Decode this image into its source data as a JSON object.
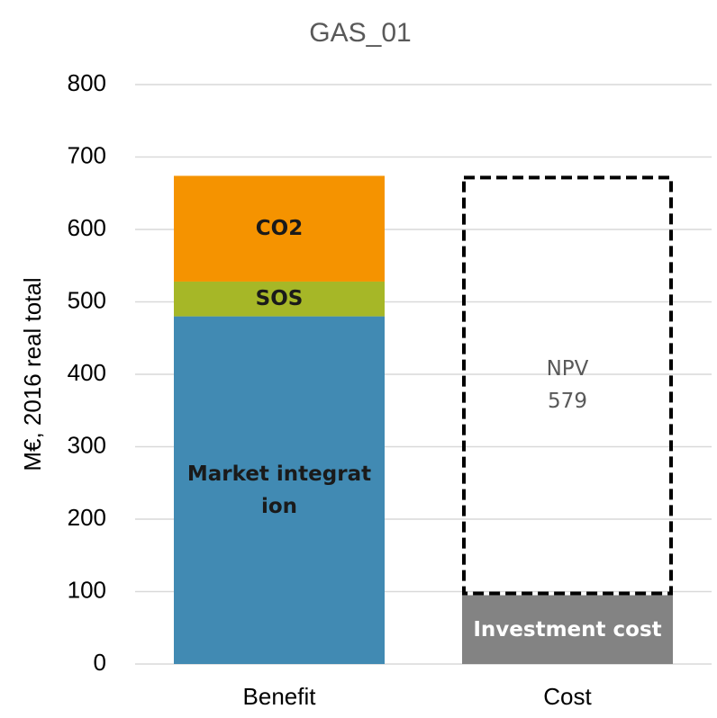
{
  "chart_data": {
    "type": "stacked_bar",
    "title": "GAS_01",
    "y_label": "M€, 2016 real total",
    "categories": [
      "Benefit",
      "Cost"
    ],
    "series": [
      {
        "name": "Market integration",
        "color": "#418ab3",
        "label_color": "#1a1a1a",
        "values": [
          480,
          null
        ]
      },
      {
        "name": "SOS",
        "color": "#a6b727",
        "label_color": "#1a1a1a",
        "values": [
          48,
          null
        ]
      },
      {
        "name": "CO2",
        "color": "#f59300",
        "label_color": "#1a1a1a",
        "values": [
          146,
          null
        ]
      },
      {
        "name": "Investment cost",
        "color": "#838383",
        "label_color": "#ffffff",
        "values": [
          null,
          95
        ]
      },
      {
        "name": "NPV",
        "color": "#000000",
        "label_color": "#595959",
        "style": "dashed",
        "values": [
          null,
          579
        ]
      }
    ],
    "ylim": [
      0,
      800
    ],
    "yticks": [
      0,
      100,
      200,
      300,
      400,
      500,
      600,
      700,
      800
    ],
    "grid": true
  }
}
